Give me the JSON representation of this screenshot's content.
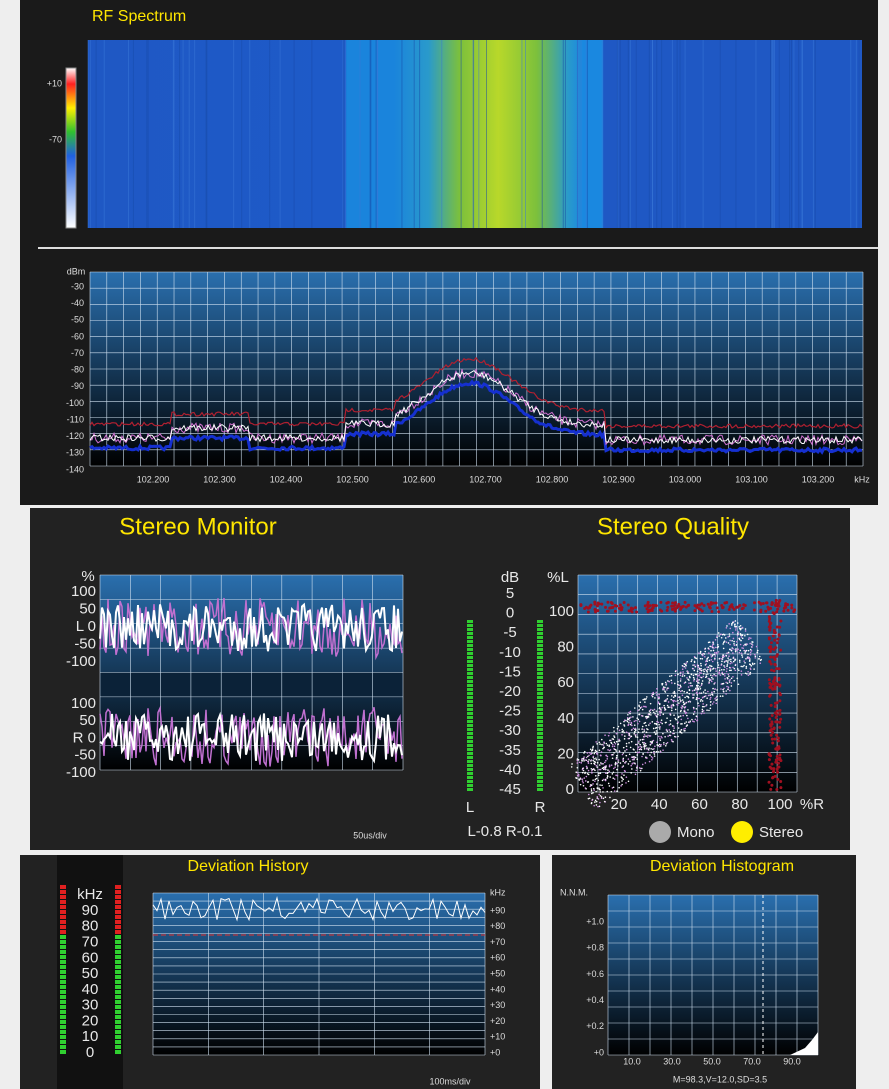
{
  "rf_spectrum": {
    "title": "RF Spectrum",
    "colorbar_labels": [
      "+10",
      "-70"
    ],
    "y_unit": "dBm",
    "y_labels": [
      "-30",
      "-40",
      "-50",
      "-60",
      "-70",
      "-80",
      "-90",
      "-100",
      "-110",
      "-120",
      "-130",
      "-140"
    ],
    "x_labels": [
      "102.200",
      "102.300",
      "102.400",
      "102.500",
      "102.600",
      "102.700",
      "102.800",
      "102.900",
      "103.000",
      "103.100",
      "103.200"
    ],
    "x_unit": "kHz"
  },
  "stereo_monitor": {
    "title": "Stereo Monitor",
    "unit": "%",
    "left_labels": [
      "100",
      "50",
      "L 0",
      "-50",
      "-100"
    ],
    "right_labels": [
      "100",
      "50",
      "R 0",
      "-50",
      "-100"
    ],
    "timebase": "50us/div",
    "meter": {
      "unit": "dB",
      "labels": [
        "5",
        "0",
        "-5",
        "-10",
        "-15",
        "-20",
        "-25",
        "-30",
        "-35",
        "-40",
        "-45"
      ],
      "channels": [
        "L",
        "R"
      ],
      "readout": "L-0.8 R-0.1"
    }
  },
  "stereo_quality": {
    "title": "Stereo Quality",
    "y_unit": "%L",
    "y_labels": [
      "100",
      "80",
      "60",
      "40",
      "20",
      "0"
    ],
    "x_labels": [
      "20",
      "40",
      "60",
      "80",
      "100"
    ],
    "x_unit": "%R",
    "legend": [
      "Mono",
      "Stereo"
    ]
  },
  "deviation_history": {
    "title": "Deviation History",
    "meter_unit": "kHz",
    "meter_labels": [
      "90",
      "80",
      "70",
      "60",
      "50",
      "40",
      "30",
      "20",
      "10",
      "0"
    ],
    "right_unit": "kHz",
    "right_labels": [
      "+90",
      "+80",
      "+70",
      "+60",
      "+50",
      "+40",
      "+30",
      "+20",
      "+10",
      "+0"
    ],
    "timebase": "100ms/div"
  },
  "deviation_histogram": {
    "title": "Deviation Histogram",
    "y_unit": "N.N.M.",
    "y_labels": [
      "+1.0",
      "+0.8",
      "+0.6",
      "+0.4",
      "+0.2",
      "+0"
    ],
    "x_labels": [
      "10.0",
      "30.0",
      "50.0",
      "70.0",
      "90.0"
    ],
    "stats": "M=98.3,V=12.0,SD=3.5"
  }
}
